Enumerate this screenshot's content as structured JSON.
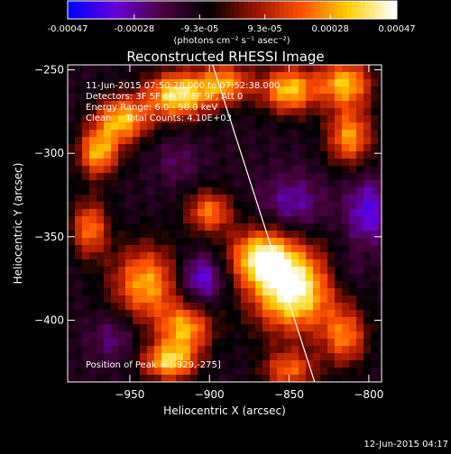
{
  "colorbar": {
    "tick_labels": [
      "-0.00047",
      "-0.00028",
      "-9.3e-05",
      "9.3e-05",
      "0.00028",
      "0.00047"
    ],
    "tick_values": [
      -0.00047,
      -0.00028,
      -9.3e-05,
      9.3e-05,
      0.00028,
      0.00047
    ],
    "range": [
      -0.00047,
      0.00047
    ],
    "units_text": "(photons cm⁻² s⁻¹ asec⁻²)",
    "colormap": [
      "#0000ff",
      "#6a00d8",
      "#4a0040",
      "#000000",
      "#9a1200",
      "#ff5000",
      "#ffd000",
      "#ffffff"
    ]
  },
  "chart_data": {
    "type": "heatmap",
    "title": "Reconstructed RHESSI Image",
    "xlabel": "Heliocentric X (arcsec)",
    "ylabel": "Heliocentric Y (arcsec)",
    "x_ticks": [
      -950,
      -900,
      -850,
      -800
    ],
    "x_tick_labels": [
      "−950",
      "−900",
      "−850",
      "−800"
    ],
    "y_ticks": [
      -250,
      -300,
      -350,
      -400
    ],
    "y_tick_labels": [
      "−250",
      "−300",
      "−350",
      "−400"
    ],
    "xlim": [
      -989,
      -792
    ],
    "ylim": [
      -437,
      -247
    ],
    "grid": false,
    "annotations": [
      "11-Jun-2015 07:50:28.000 to 07:52:38.000",
      "Detectors: 3F 5F 6F 7F 8F 9F, Att 0",
      "Energy Range: 6.0 - 50.0 keV",
      "Clean     Total Counts: 4.10E+03"
    ],
    "peak_label": "Position of Peak = [-929,-275]",
    "peak_position": [
      -929,
      -275
    ],
    "limb_line_data": [
      [
        -898,
        -247
      ],
      [
        -834,
        -437
      ]
    ],
    "hotspots": [
      {
        "x": -848,
        "y": -382,
        "value": 0.00047,
        "sx": 18,
        "sy": 18
      },
      {
        "x": -868,
        "y": -362,
        "value": 0.00034,
        "sx": 14,
        "sy": 12
      },
      {
        "x": -920,
        "y": -265,
        "value": 0.0004,
        "sx": 14,
        "sy": 10
      },
      {
        "x": -955,
        "y": -280,
        "value": 0.00032,
        "sx": 12,
        "sy": 10
      },
      {
        "x": -970,
        "y": -300,
        "value": 0.0003,
        "sx": 9,
        "sy": 10
      },
      {
        "x": -890,
        "y": -258,
        "value": 0.00026,
        "sx": 12,
        "sy": 9
      },
      {
        "x": -850,
        "y": -262,
        "value": 0.00034,
        "sx": 12,
        "sy": 10
      },
      {
        "x": -815,
        "y": -258,
        "value": 0.00032,
        "sx": 12,
        "sy": 10
      },
      {
        "x": -812,
        "y": -290,
        "value": 0.00028,
        "sx": 10,
        "sy": 12
      },
      {
        "x": -940,
        "y": -378,
        "value": 0.0003,
        "sx": 15,
        "sy": 16
      },
      {
        "x": -915,
        "y": -405,
        "value": 0.00028,
        "sx": 12,
        "sy": 10
      },
      {
        "x": -925,
        "y": -425,
        "value": 0.00034,
        "sx": 12,
        "sy": 8
      },
      {
        "x": -900,
        "y": -335,
        "value": 0.00024,
        "sx": 10,
        "sy": 9
      },
      {
        "x": -975,
        "y": -345,
        "value": 0.00024,
        "sx": 8,
        "sy": 12
      },
      {
        "x": -815,
        "y": -410,
        "value": 0.00022,
        "sx": 10,
        "sy": 12
      },
      {
        "x": -850,
        "y": -430,
        "value": 0.0002,
        "sx": 12,
        "sy": 8
      }
    ],
    "coldspots": [
      {
        "x": -905,
        "y": -375,
        "value": -0.00038,
        "sx": 10,
        "sy": 10
      },
      {
        "x": -848,
        "y": -330,
        "value": -0.0003,
        "sx": 14,
        "sy": 12
      },
      {
        "x": -800,
        "y": -335,
        "value": -0.00036,
        "sx": 10,
        "sy": 14
      },
      {
        "x": -920,
        "y": -305,
        "value": -0.00022,
        "sx": 10,
        "sy": 10
      },
      {
        "x": -960,
        "y": -410,
        "value": -0.00026,
        "sx": 10,
        "sy": 10
      },
      {
        "x": -815,
        "y": -370,
        "value": -0.00022,
        "sx": 8,
        "sy": 8
      }
    ]
  },
  "footer_timestamp": "12-Jun-2015 04:17"
}
